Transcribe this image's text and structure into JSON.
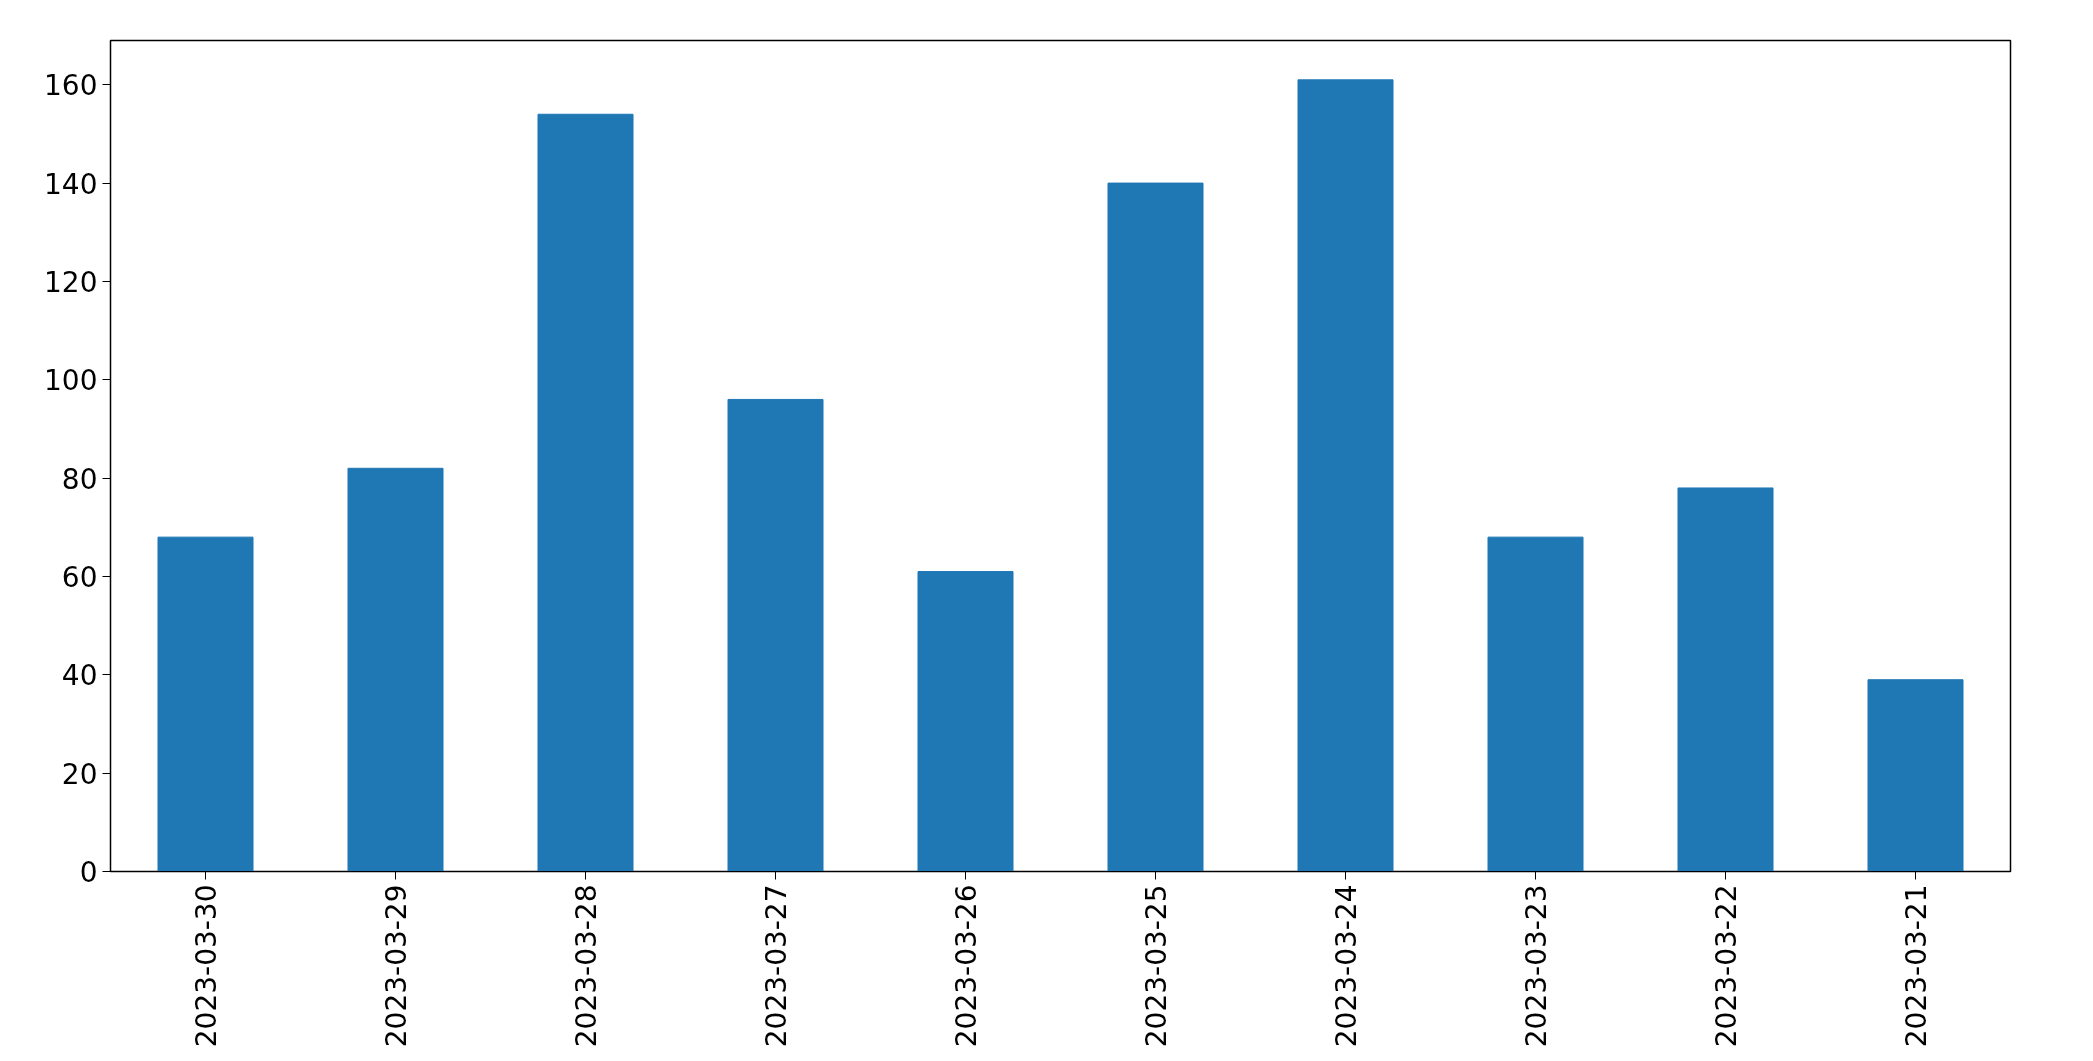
{
  "chart_data": {
    "type": "bar",
    "categories": [
      "2023-03-30",
      "2023-03-29",
      "2023-03-28",
      "2023-03-27",
      "2023-03-26",
      "2023-03-25",
      "2023-03-24",
      "2023-03-23",
      "2023-03-22",
      "2023-03-21"
    ],
    "values": [
      68,
      82,
      154,
      96,
      61,
      140,
      161,
      68,
      78,
      39
    ],
    "color": "#1f77b4",
    "ylim": [
      0,
      169
    ],
    "yticks": [
      0,
      20,
      40,
      60,
      80,
      100,
      120,
      140,
      160
    ],
    "grid": false,
    "legend": false
  }
}
